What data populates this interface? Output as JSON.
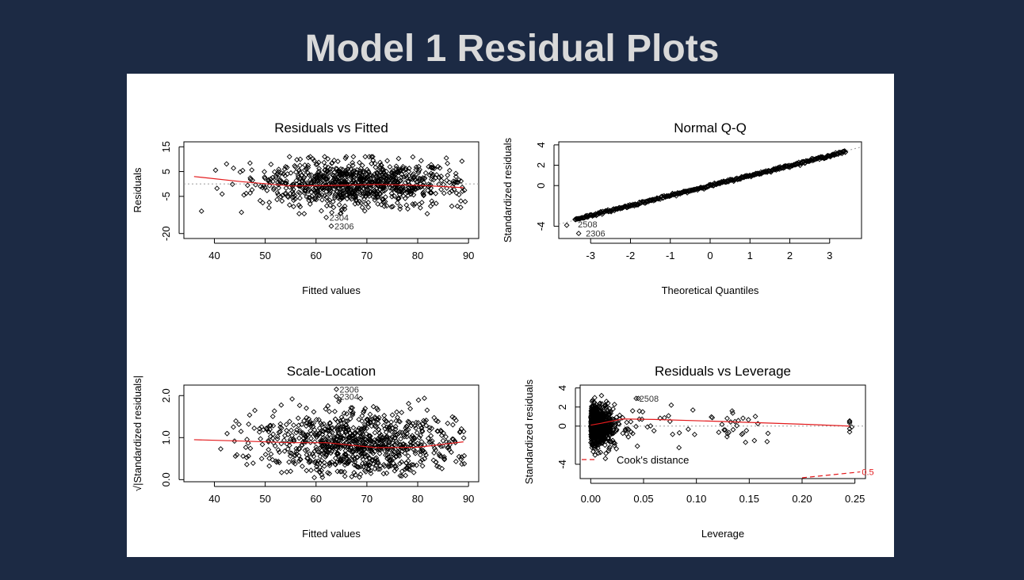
{
  "slide": {
    "title": "Model 1 Residual Plots"
  },
  "colors": {
    "background": "#1c2a44",
    "title": "#d9d9d9",
    "panel": "#ffffff",
    "smooth": "#e31a1c",
    "points": "#000000",
    "reference": "#9a9a9a"
  },
  "chart_data": [
    {
      "type": "scatter",
      "title": "Residuals vs Fitted",
      "xlabel": "Fitted values",
      "ylabel": "Residuals",
      "xlim": [
        34,
        92
      ],
      "ylim": [
        -22,
        17
      ],
      "xticks": [
        "40",
        "50",
        "60",
        "70",
        "80",
        "90"
      ],
      "yticks": [
        "15",
        "5",
        "-5",
        "-20"
      ],
      "ytick_values": [
        15,
        5,
        -5,
        -20
      ],
      "reference_y": 0,
      "smooth": {
        "x": [
          36,
          45,
          55,
          65,
          72,
          80,
          89
        ],
        "y": [
          3,
          1,
          -0.8,
          -0.5,
          -0.2,
          -0.5,
          -1.5
        ]
      },
      "labels": [
        "2304",
        "2306"
      ],
      "label_points": [
        [
          62,
          -13.5
        ],
        [
          63,
          -17
        ]
      ]
    },
    {
      "type": "scatter",
      "title": "Normal Q-Q",
      "xlabel": "Theoretical Quantiles",
      "ylabel": "Standardized residuals",
      "xlim": [
        -3.8,
        3.8
      ],
      "ylim": [
        -5.2,
        4.3
      ],
      "xticks": [
        "-3",
        "-2",
        "-1",
        "0",
        "1",
        "2",
        "3"
      ],
      "yticks": [
        "4",
        "2",
        "0",
        "-4"
      ],
      "ytick_values": [
        4,
        2,
        0,
        -4
      ],
      "reference_line": {
        "x": [
          -3.8,
          3.8
        ],
        "y": [
          -3.8,
          3.8
        ]
      },
      "labels": [
        "2508",
        "2306"
      ],
      "label_points": [
        [
          -3.4,
          -3.8
        ],
        [
          -3.2,
          -4.7
        ]
      ]
    },
    {
      "type": "scatter",
      "title": "Scale-Location",
      "xlabel": "Fitted values",
      "ylabel": "√|Standardized residuals|",
      "xlim": [
        34,
        92
      ],
      "ylim": [
        -0.05,
        2.25
      ],
      "xticks": [
        "40",
        "50",
        "60",
        "70",
        "80",
        "90"
      ],
      "yticks": [
        "0.0",
        "1.0",
        "2.0"
      ],
      "ytick_values": [
        0,
        1,
        2
      ],
      "smooth": {
        "x": [
          36,
          45,
          55,
          62,
          67,
          72,
          80,
          89
        ],
        "y": [
          0.95,
          0.92,
          0.88,
          0.88,
          0.82,
          0.76,
          0.77,
          0.9
        ]
      },
      "labels": [
        "2306",
        "2304"
      ],
      "label_points": [
        [
          64,
          2.15
        ],
        [
          64,
          1.98
        ]
      ]
    },
    {
      "type": "scatter",
      "title": "Residuals vs Leverage",
      "xlabel": "Leverage",
      "ylabel": "Standardized residuals",
      "xlim": [
        -0.01,
        0.26
      ],
      "ylim": [
        -5.5,
        4.3
      ],
      "xticks": [
        "0.00",
        "0.05",
        "0.10",
        "0.15",
        "0.20",
        "0.25"
      ],
      "yticks": [
        "4",
        "2",
        "0",
        "-4"
      ],
      "ytick_values": [
        4,
        2,
        0,
        -4
      ],
      "reference_y": 0,
      "smooth": {
        "x": [
          0,
          0.01,
          0.03,
          0.06,
          0.12,
          0.2,
          0.245
        ],
        "y": [
          0.1,
          0.3,
          0.75,
          0.7,
          0.5,
          0.2,
          0
        ]
      },
      "cooks_line": {
        "x": [
          0.2,
          0.255
        ],
        "y": [
          -5.5,
          -4.8
        ]
      },
      "cooks_label": "0.5",
      "legend_text": "Cook's distance",
      "labels": [
        "2508"
      ],
      "label_points": [
        [
          0.043,
          2.9
        ]
      ]
    }
  ]
}
